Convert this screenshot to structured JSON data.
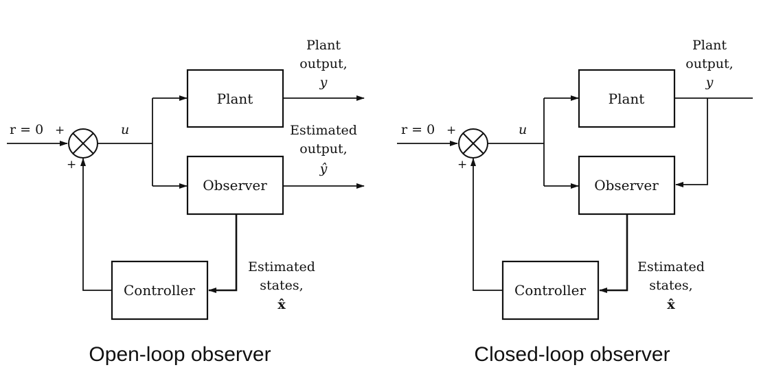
{
  "left_diagram": {
    "reference_label": "r = 0",
    "summer_plus_top": "+",
    "summer_plus_bottom": "+",
    "control_label": "u",
    "plant_label": "Plant",
    "observer_label": "Observer",
    "controller_label": "Controller",
    "plant_output_line1": "Plant",
    "plant_output_line2": "output,",
    "plant_output_symbol": "y",
    "est_output_line1": "Estimated",
    "est_output_line2": "output,",
    "est_output_symbol": "ŷ",
    "est_states_line1": "Estimated",
    "est_states_line2": "states,",
    "est_states_symbol": "x̂",
    "caption": "Open-loop observer"
  },
  "right_diagram": {
    "reference_label": "r = 0",
    "summer_plus_top": "+",
    "summer_plus_bottom": "+",
    "control_label": "u",
    "plant_label": "Plant",
    "observer_label": "Observer",
    "controller_label": "Controller",
    "plant_output_line1": "Plant",
    "plant_output_line2": "output,",
    "plant_output_symbol": "y",
    "est_states_line1": "Estimated",
    "est_states_line2": "states,",
    "est_states_symbol": "x̂",
    "caption": "Closed-loop observer"
  }
}
